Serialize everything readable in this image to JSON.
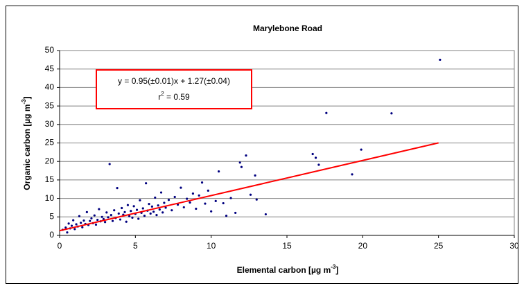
{
  "chart_data": {
    "type": "scatter",
    "title": "Marylebone Road",
    "x_label": {
      "main": "Elemental carbon [µg m",
      "sup": "-3",
      "end": "]"
    },
    "y_label": {
      "main": "Organic carbon [µg m",
      "sup": "-3",
      "end": "]"
    },
    "annotation": {
      "equation": "y = 0.95(±0.01)x + 1.27(±0.04)",
      "r_base": "r",
      "r_sup": "2",
      "r_rest": " = 0.59",
      "border_color": "#ff0000"
    },
    "color": "#00007f",
    "x": [
      0.2,
      0.4,
      0.5,
      0.6,
      0.7,
      0.8,
      0.9,
      1.0,
      1.1,
      1.2,
      1.3,
      1.4,
      1.5,
      1.6,
      1.7,
      1.8,
      1.9,
      2.0,
      2.1,
      2.2,
      2.3,
      2.4,
      2.5,
      2.6,
      2.7,
      2.8,
      2.9,
      3.0,
      3.1,
      3.2,
      3.3,
      3.4,
      3.5,
      3.6,
      3.7,
      3.8,
      3.9,
      4.0,
      4.1,
      4.2,
      4.3,
      4.4,
      4.5,
      4.6,
      4.7,
      4.8,
      4.9,
      5.0,
      5.1,
      5.2,
      5.3,
      5.4,
      5.5,
      5.6,
      5.7,
      5.8,
      5.9,
      6.0,
      6.1,
      6.2,
      6.3,
      6.4,
      6.5,
      6.6,
      6.7,
      6.8,
      6.9,
      7.0,
      7.2,
      7.4,
      7.6,
      7.8,
      8.0,
      8.2,
      8.4,
      8.6,
      8.8,
      9.0,
      9.2,
      9.4,
      9.6,
      9.8,
      10.0,
      10.3,
      10.5,
      10.8,
      11.0,
      11.3,
      11.6,
      11.9,
      12.0,
      12.3,
      12.6,
      12.9,
      13.0,
      13.6,
      16.7,
      16.9,
      17.1,
      17.6,
      19.3,
      19.9,
      21.9,
      25.1
    ],
    "y": [
      1.5,
      2.1,
      0.8,
      3.2,
      1.9,
      2.6,
      4.1,
      1.7,
      3.0,
      2.4,
      5.2,
      3.4,
      2.2,
      4.0,
      3.1,
      6.3,
      2.8,
      3.9,
      4.6,
      3.3,
      5.4,
      2.9,
      4.2,
      7.1,
      3.8,
      5.0,
      4.4,
      3.6,
      6.2,
      4.9,
      19.3,
      5.5,
      3.9,
      6.8,
      4.7,
      12.8,
      5.9,
      4.3,
      7.4,
      5.6,
      6.3,
      3.7,
      8.2,
      5.2,
      6.6,
      4.8,
      7.9,
      5.8,
      6.9,
      4.5,
      9.5,
      6.1,
      7.3,
      5.3,
      14.1,
      6.7,
      8.5,
      5.9,
      7.8,
      6.4,
      10.2,
      5.5,
      8.1,
      7.0,
      11.6,
      6.2,
      8.8,
      7.5,
      9.6,
      6.8,
      10.4,
      8.3,
      12.9,
      7.6,
      9.9,
      8.9,
      11.3,
      7.2,
      10.8,
      14.3,
      8.6,
      12.1,
      6.5,
      9.3,
      17.3,
      8.7,
      5.3,
      10.1,
      6.1,
      19.7,
      18.5,
      21.6,
      11.0,
      16.2,
      9.7,
      5.7,
      22.0,
      21.0,
      19.1,
      33.1,
      16.5,
      23.2,
      33.0,
      47.5
    ],
    "fit_line": {
      "color": "#ff0000",
      "x": [
        0,
        25
      ],
      "y": [
        1.27,
        25.02
      ]
    },
    "xlim": [
      0,
      30
    ],
    "xticks": [
      0,
      5,
      10,
      15,
      20,
      25,
      30
    ],
    "ylim": [
      0,
      50
    ],
    "yticks": [
      0,
      5,
      10,
      15,
      20,
      25,
      30,
      35,
      40,
      45,
      50
    ],
    "grid": true
  }
}
